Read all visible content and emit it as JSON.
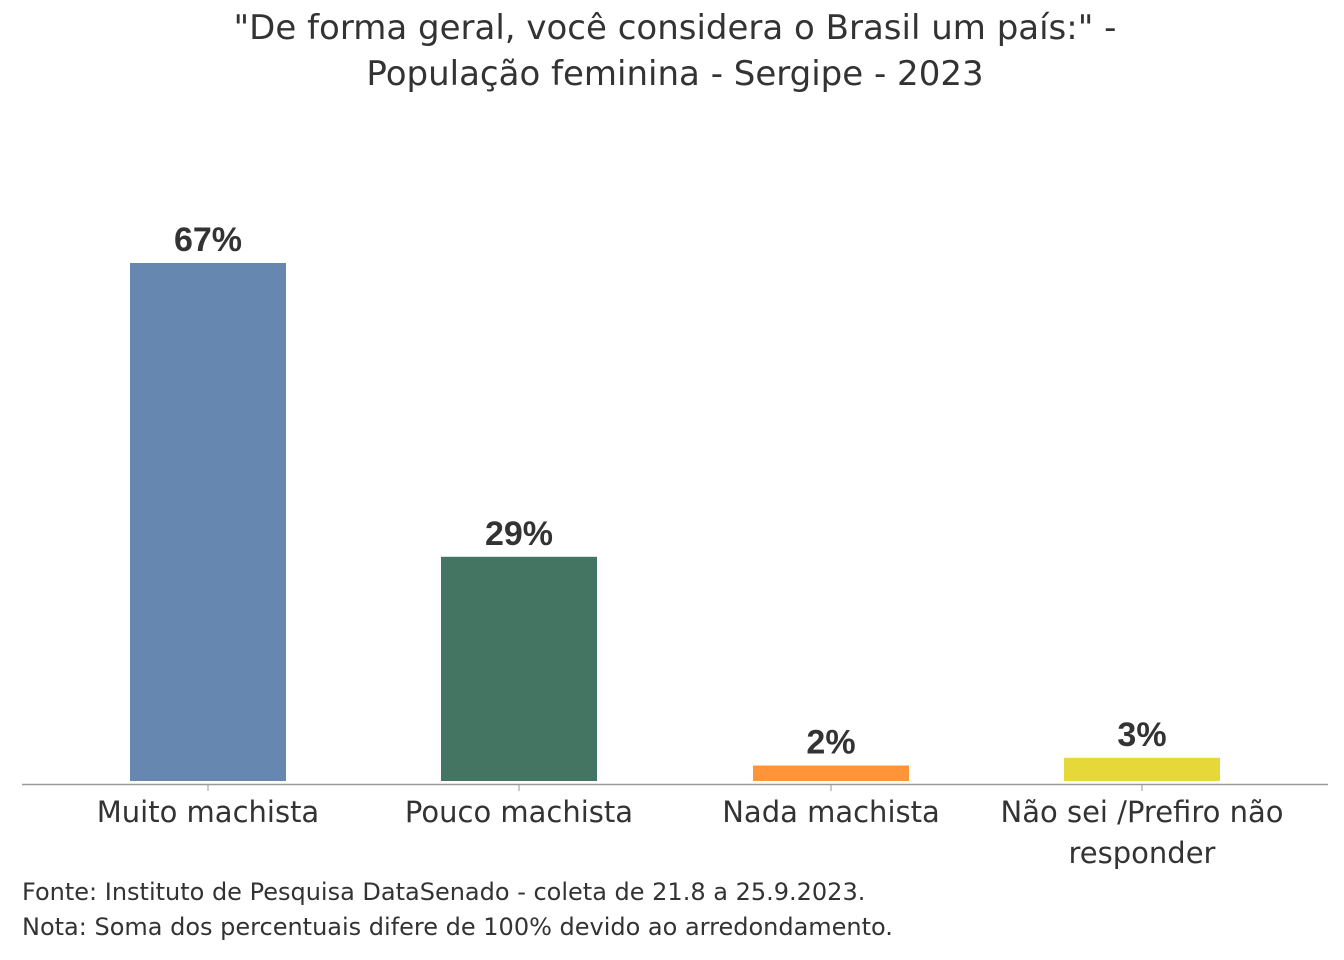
{
  "chart_data": {
    "type": "bar",
    "title_lines": [
      "\"De forma geral, você considera o Brasil um país:\" -",
      "População feminina - Sergipe - 2023"
    ],
    "categories": [
      [
        "Muito machista"
      ],
      [
        "Pouco machista"
      ],
      [
        "Nada machista"
      ],
      [
        "Não sei /Prefiro não",
        "responder"
      ]
    ],
    "values": [
      67,
      29,
      2,
      3
    ],
    "value_labels": [
      "67%",
      "29%",
      "2%",
      "3%"
    ],
    "colors": [
      "#6688B0",
      "#447563",
      "#FF9438",
      "#E6D838"
    ],
    "xlabel": "",
    "ylabel": "",
    "ylim": [
      0,
      67
    ],
    "grid": false,
    "legend": "none"
  },
  "footer": {
    "source": "Fonte: Instituto de Pesquisa DataSenado - coleta de 21.8 a 25.9.2023.",
    "note": "Nota: Soma dos percentuais difere de 100% devido ao arredondamento."
  }
}
